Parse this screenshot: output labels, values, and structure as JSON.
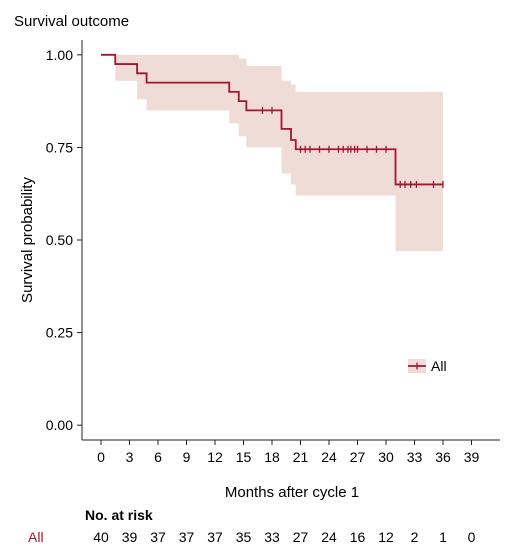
{
  "chart_data": {
    "type": "line",
    "subtype": "kaplan-meier",
    "title": "Survival outcome",
    "xlabel": "Months after cycle 1",
    "ylabel": "Survival probability",
    "xlim": [
      -2,
      42
    ],
    "ylim": [
      -0.04,
      1.04
    ],
    "x_ticks": [
      "0",
      "3",
      "6",
      "9",
      "12",
      "15",
      "18",
      "21",
      "24",
      "27",
      "30",
      "33",
      "36",
      "39"
    ],
    "y_ticks": [
      "0.00",
      "0.25",
      "0.50",
      "0.75",
      "1.00"
    ],
    "legend": {
      "position": "right",
      "label": "All"
    },
    "grid": false,
    "color": "#a1172f",
    "band_color": "#efdcd6",
    "series": [
      {
        "name": "All",
        "steps": [
          {
            "x": 0,
            "y": 1.0
          },
          {
            "x": 1.5,
            "y": 0.975
          },
          {
            "x": 3.8,
            "y": 0.95
          },
          {
            "x": 4.8,
            "y": 0.925
          },
          {
            "x": 13.5,
            "y": 0.9
          },
          {
            "x": 14.5,
            "y": 0.875
          },
          {
            "x": 15.3,
            "y": 0.85
          },
          {
            "x": 19.0,
            "y": 0.8
          },
          {
            "x": 20.0,
            "y": 0.77
          },
          {
            "x": 20.5,
            "y": 0.745
          },
          {
            "x": 31.0,
            "y": 0.65
          },
          {
            "x": 36.0,
            "y": 0.65
          }
        ],
        "ci_steps": [
          {
            "x": 0,
            "lower": 1.0,
            "upper": 1.0
          },
          {
            "x": 1.5,
            "lower": 0.93,
            "upper": 1.0
          },
          {
            "x": 3.8,
            "lower": 0.88,
            "upper": 1.0
          },
          {
            "x": 4.8,
            "lower": 0.85,
            "upper": 1.0
          },
          {
            "x": 13.5,
            "lower": 0.815,
            "upper": 1.0
          },
          {
            "x": 14.5,
            "lower": 0.78,
            "upper": 0.99
          },
          {
            "x": 15.3,
            "lower": 0.75,
            "upper": 0.97
          },
          {
            "x": 19.0,
            "lower": 0.68,
            "upper": 0.93
          },
          {
            "x": 20.0,
            "lower": 0.65,
            "upper": 0.92
          },
          {
            "x": 20.5,
            "lower": 0.62,
            "upper": 0.9
          },
          {
            "x": 31.0,
            "lower": 0.47,
            "upper": 0.9
          },
          {
            "x": 36.0,
            "lower": 0.47,
            "upper": 0.9
          }
        ],
        "censor_x": [
          17,
          18,
          21,
          21.5,
          22,
          23,
          24,
          25,
          25.5,
          26,
          26.3,
          26.7,
          27,
          28,
          29,
          30,
          31.5,
          32,
          32.6,
          33.2,
          35,
          36
        ]
      }
    ],
    "risk_table": {
      "header": "No. at risk",
      "row_label": "All",
      "counts": [
        "40",
        "39",
        "37",
        "37",
        "37",
        "35",
        "33",
        "27",
        "24",
        "16",
        "12",
        "2",
        "1",
        "0"
      ]
    }
  }
}
